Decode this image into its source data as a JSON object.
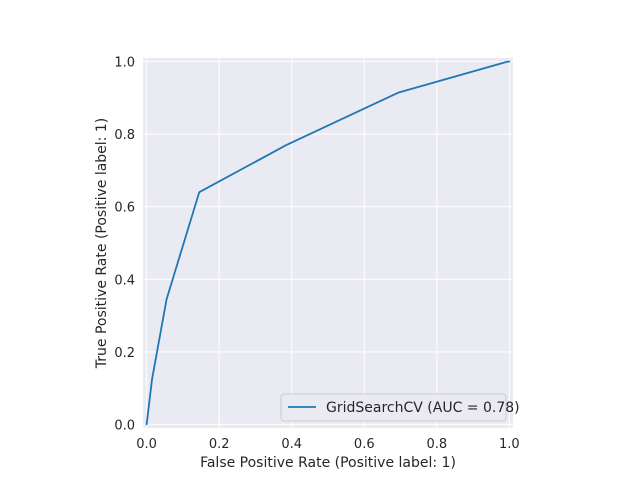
{
  "chart_data": {
    "type": "line",
    "title": "",
    "xlabel": "False Positive Rate (Positive label: 1)",
    "ylabel": "True Positive Rate (Positive label: 1)",
    "xlim": [
      -0.01,
      1.01
    ],
    "ylim": [
      -0.01,
      1.01
    ],
    "xticks": [
      0.0,
      0.2,
      0.4,
      0.6,
      0.8,
      1.0
    ],
    "xtick_labels": [
      "0.0",
      "0.2",
      "0.4",
      "0.6",
      "0.8",
      "1.0"
    ],
    "yticks": [
      0.0,
      0.2,
      0.4,
      0.6,
      0.8,
      1.0
    ],
    "ytick_labels": [
      "0.0",
      "0.2",
      "0.4",
      "0.6",
      "0.8",
      "1.0"
    ],
    "grid": true,
    "legend_position": "lower-right",
    "background_color": "#eaeaf2",
    "grid_color": "#ffffff",
    "series": [
      {
        "name": "GridSearchCV (AUC = 0.78)",
        "color": "#1f77b4",
        "x": [
          0.0,
          0.015,
          0.055,
          0.145,
          0.385,
          0.695,
          0.995,
          1.0
        ],
        "y": [
          0.0,
          0.125,
          0.345,
          0.64,
          0.77,
          0.915,
          1.0,
          1.0
        ]
      }
    ]
  }
}
